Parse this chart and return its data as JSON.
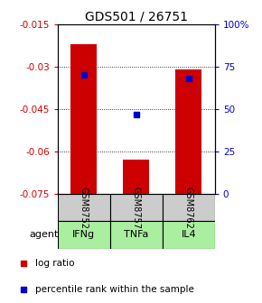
{
  "title": "GDS501 / 26751",
  "samples": [
    "GSM8752",
    "GSM8757",
    "GSM8762"
  ],
  "agents": [
    "IFNg",
    "TNFa",
    "IL4"
  ],
  "log_ratios": [
    -0.022,
    -0.063,
    -0.031
  ],
  "percentile_ranks": [
    70,
    47,
    68
  ],
  "ylim_left": [
    -0.075,
    -0.015
  ],
  "ylim_right": [
    0,
    100
  ],
  "yticks_left": [
    -0.075,
    -0.06,
    -0.045,
    -0.03,
    -0.015
  ],
  "yticks_left_labels": [
    "-0.075",
    "-0.06",
    "-0.045",
    "-0.03",
    "-0.015"
  ],
  "yticks_right": [
    0,
    25,
    50,
    75,
    100
  ],
  "yticks_right_labels": [
    "0",
    "25",
    "50",
    "75",
    "100%"
  ],
  "bar_color": "#cc0000",
  "percentile_color": "#0000cc",
  "agent_bg_color": "#aaeea0",
  "sample_bg_color": "#cccccc",
  "bar_width": 0.5,
  "title_fontsize": 10,
  "tick_fontsize": 7.5,
  "label_fontsize": 8
}
